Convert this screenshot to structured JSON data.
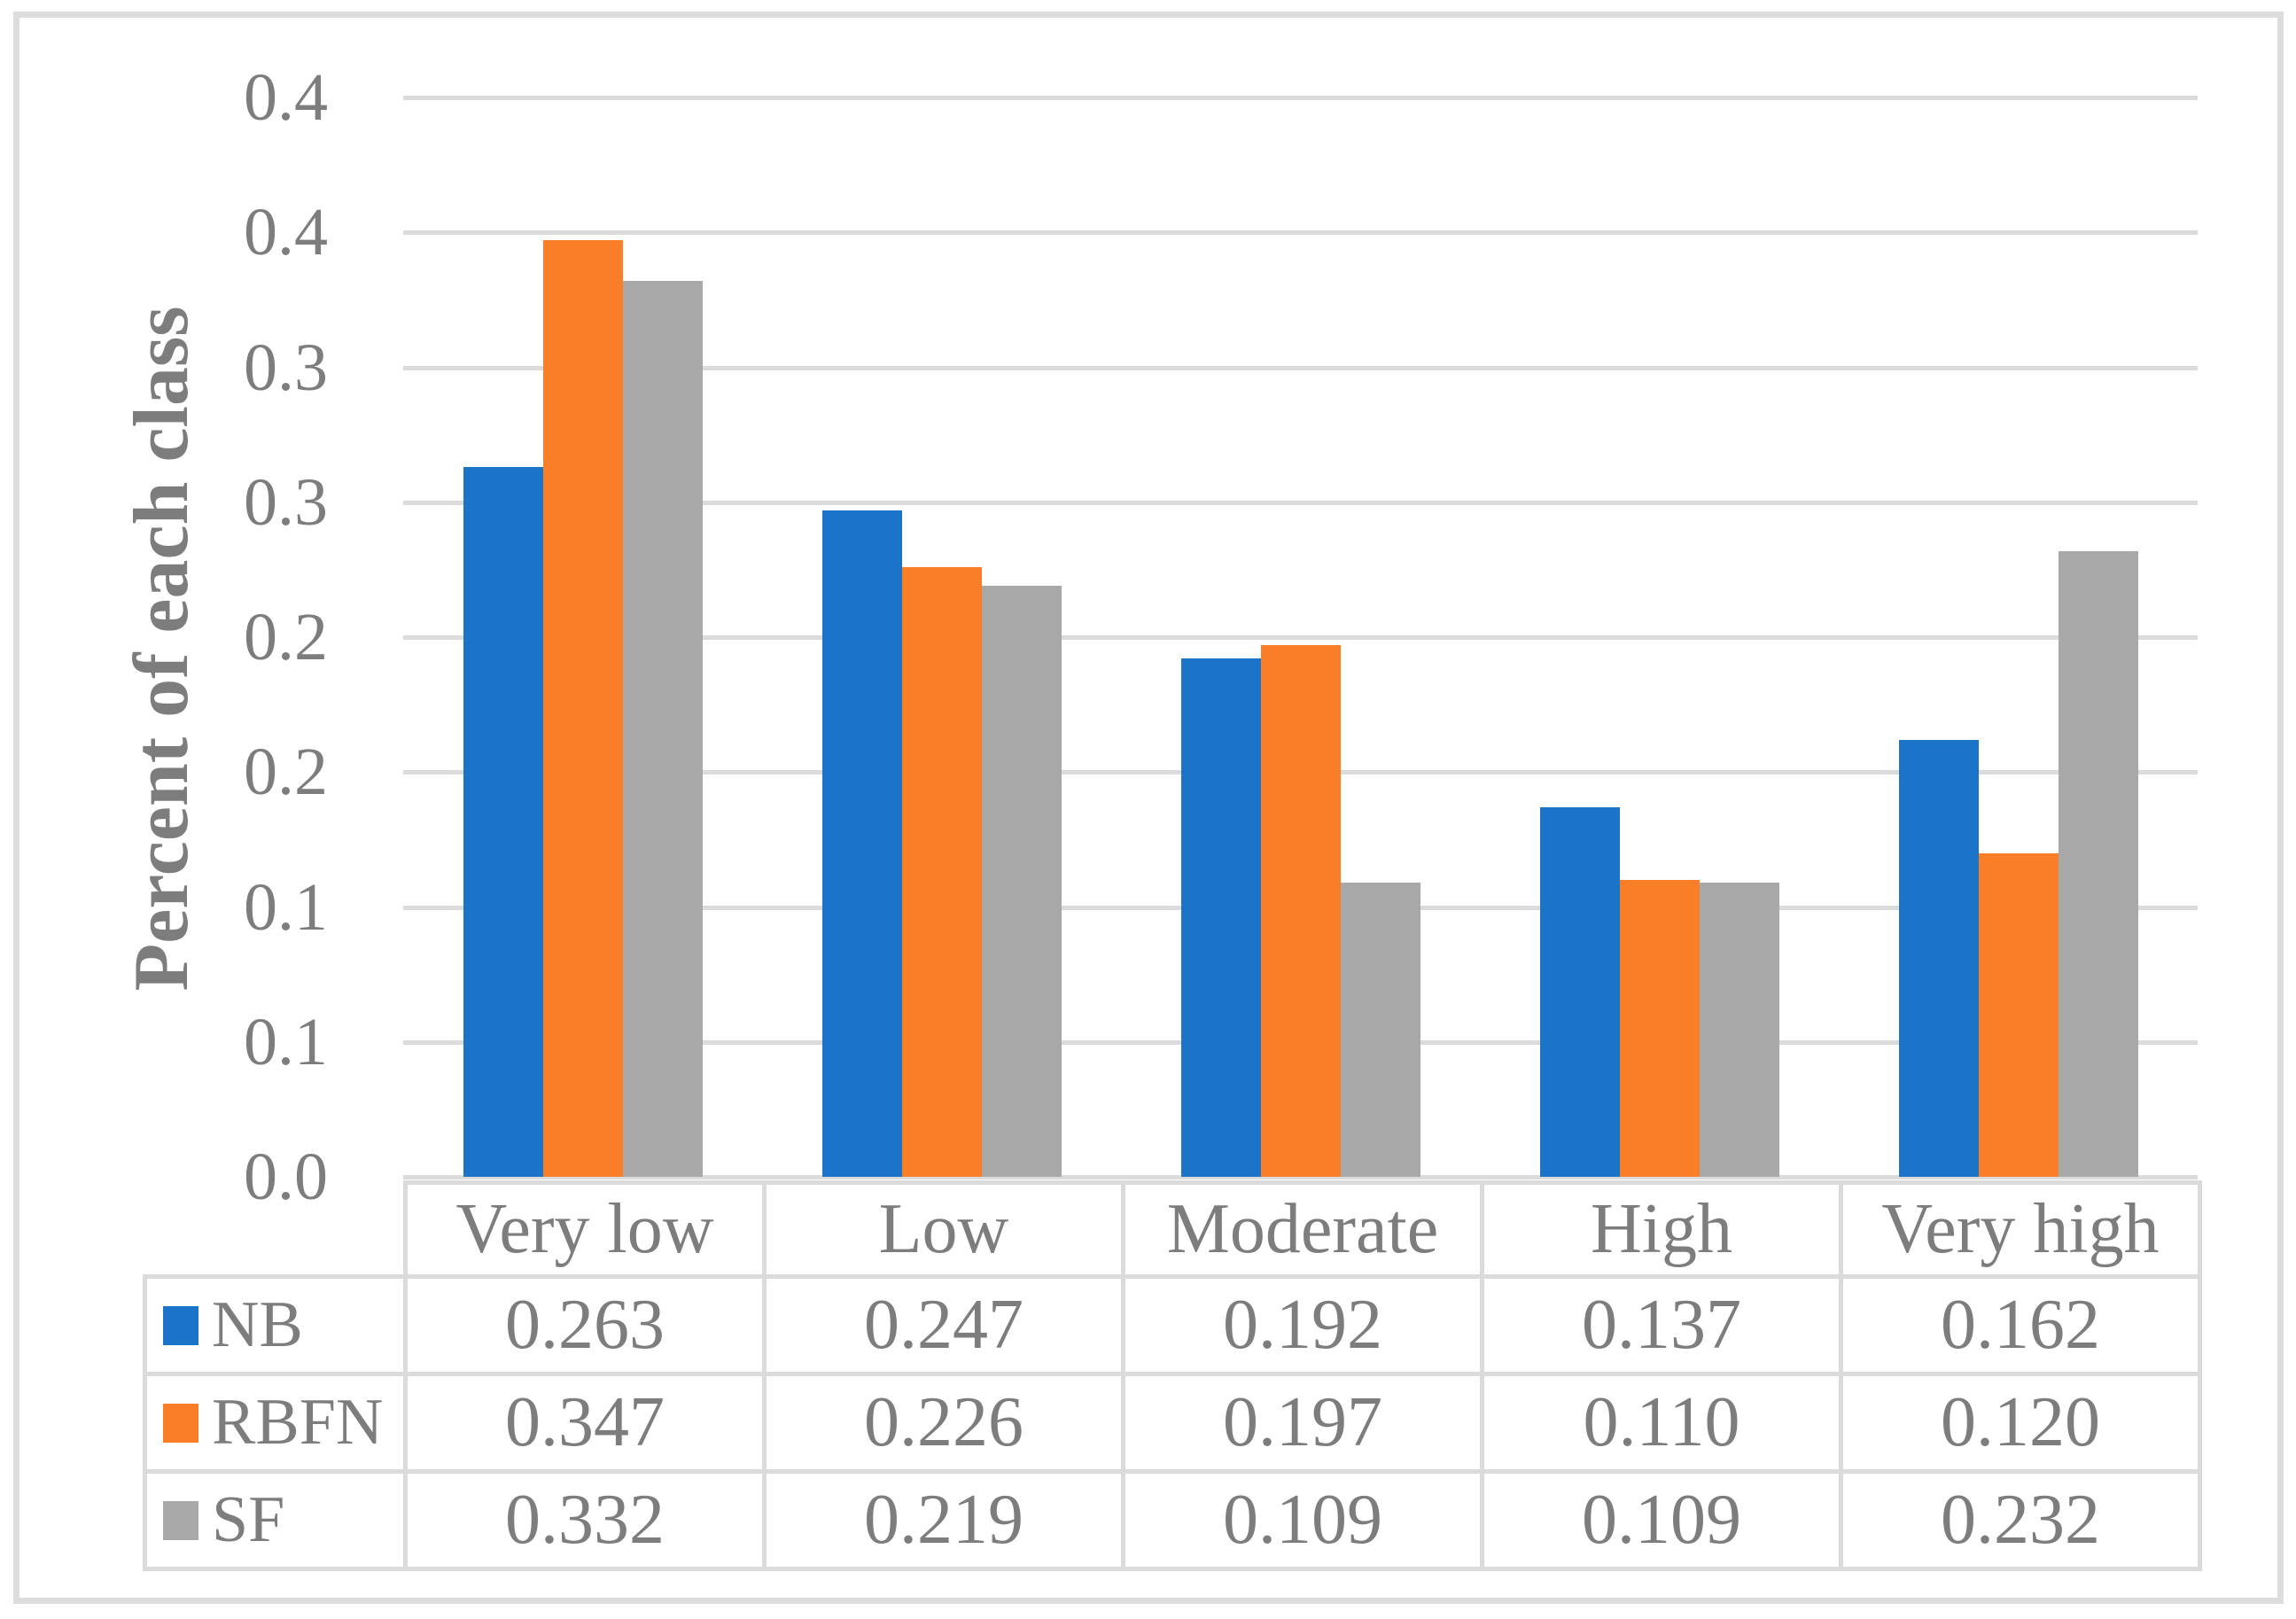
{
  "figure": {
    "background_color": "#FFFFFF",
    "frame_color": "#DDDDDD"
  },
  "chart_data": {
    "type": "bar",
    "title": "",
    "ylabel": "Percent of each class",
    "xlabel": "",
    "categories": [
      "Very low",
      "Low",
      "Moderate",
      "High",
      "Very high"
    ],
    "series": [
      {
        "name": "NB",
        "color": "#1B74C8",
        "values": [
          0.263,
          0.247,
          0.192,
          0.137,
          0.162
        ],
        "display_values": [
          "0.263",
          "0.247",
          "0.192",
          "0.137",
          "0.162"
        ]
      },
      {
        "name": "RBFN",
        "color": "#FA7D27",
        "values": [
          0.347,
          0.226,
          0.197,
          0.11,
          0.12
        ],
        "display_values": [
          "0.347",
          "0.226",
          "0.197",
          "0.110",
          "0.120"
        ]
      },
      {
        "name": "SF",
        "color": "#A8A8A8",
        "values": [
          0.332,
          0.219,
          0.109,
          0.109,
          0.232
        ],
        "display_values": [
          "0.332",
          "0.219",
          "0.109",
          "0.109",
          "0.232"
        ]
      }
    ],
    "ylim": [
      0,
      0.4
    ],
    "ytick_interval": 0.05,
    "ytick_labels_bottom_to_top": [
      "0.0",
      "0.1",
      "0.1",
      "0.2",
      "0.2",
      "0.3",
      "0.3",
      "0.4",
      "0.4"
    ],
    "grid": true,
    "gridline_color": "#DBDBDB",
    "text_color": "#7D7D7D",
    "legend_position": "data-table-left"
  }
}
